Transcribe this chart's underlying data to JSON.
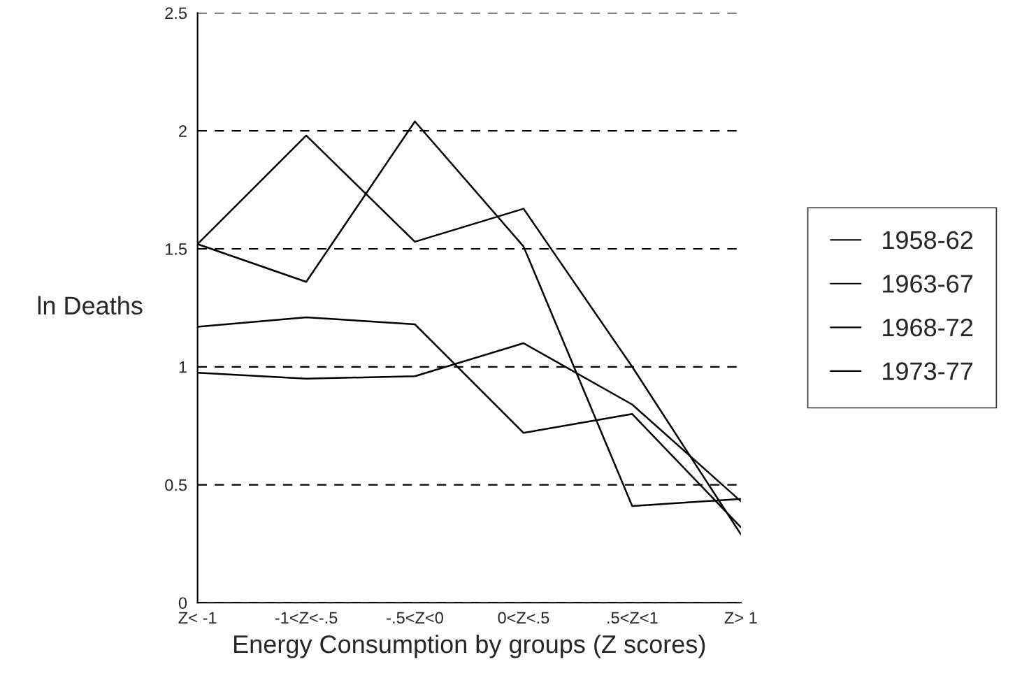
{
  "chart_data": {
    "type": "line",
    "xlabel": "Energy Consumption by groups (Z scores)",
    "ylabel": "ln Deaths",
    "categories": [
      "Z< -1",
      "-1<Z<-.5",
      "-.5<Z<0",
      "0<Z<.5",
      ".5<Z<1",
      "Z> 1"
    ],
    "series": [
      {
        "name": "1958-62",
        "color": "#000000",
        "values": [
          1.52,
          1.98,
          1.53,
          1.67,
          1.0,
          0.29
        ]
      },
      {
        "name": "1963-67",
        "color": "#000000",
        "values": [
          1.52,
          1.36,
          2.04,
          1.51,
          0.41,
          0.44
        ]
      },
      {
        "name": "1968-72",
        "color": "#000000",
        "values": [
          1.17,
          1.21,
          1.18,
          0.72,
          0.8,
          0.32
        ]
      },
      {
        "name": "1973-77",
        "color": "#000000",
        "values": [
          0.975,
          0.95,
          0.96,
          1.1,
          0.84,
          0.43
        ]
      }
    ],
    "ylim": [
      0,
      2.5
    ],
    "yticks": [
      0,
      0.5,
      1,
      1.5,
      2,
      2.5
    ],
    "grid": "y",
    "legend": "right",
    "line_style": "solid",
    "marker": "none"
  }
}
